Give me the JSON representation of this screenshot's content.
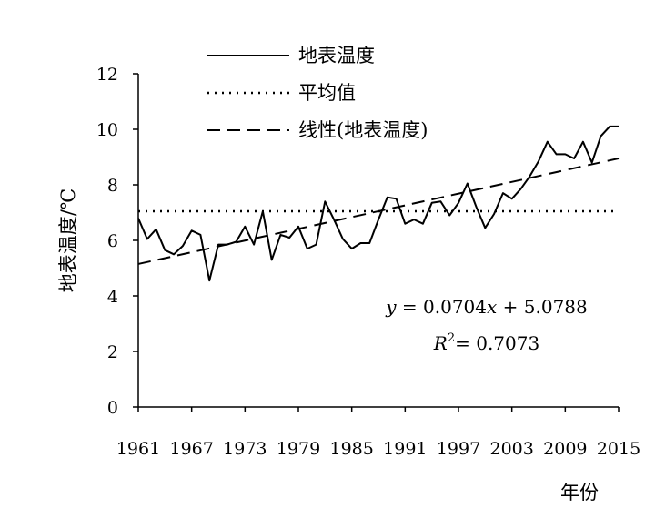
{
  "chart_data": {
    "type": "line",
    "ylabel": "地表温度/℃",
    "xlabel": "年份",
    "ylim": [
      0,
      12
    ],
    "xlim": [
      1961,
      2015
    ],
    "yticks": [
      "0",
      "2",
      "4",
      "6",
      "8",
      "10",
      "12"
    ],
    "xticks": [
      "1961",
      "1967",
      "1973",
      "1979",
      "1985",
      "1991",
      "1997",
      "2003",
      "2009",
      "2015"
    ],
    "grid": false,
    "legend_position": "top",
    "legend": [
      "地表温度",
      "平均值",
      "线性(地表温度)"
    ],
    "series": [
      {
        "name": "地表温度",
        "style": "solid",
        "x": [
          1961,
          1962,
          1963,
          1964,
          1965,
          1966,
          1967,
          1968,
          1969,
          1970,
          1971,
          1972,
          1973,
          1974,
          1975,
          1976,
          1977,
          1978,
          1979,
          1980,
          1981,
          1982,
          1983,
          1984,
          1985,
          1986,
          1987,
          1988,
          1989,
          1990,
          1991,
          1992,
          1993,
          1994,
          1995,
          1996,
          1997,
          1998,
          1999,
          2000,
          2001,
          2002,
          2003,
          2004,
          2005,
          2006,
          2007,
          2008,
          2009,
          2010,
          2011,
          2012,
          2013,
          2014,
          2015
        ],
        "values": [
          6.8,
          6.05,
          6.4,
          5.65,
          5.5,
          5.8,
          6.35,
          6.2,
          4.55,
          5.85,
          5.85,
          5.95,
          6.5,
          5.85,
          7.05,
          5.3,
          6.2,
          6.1,
          6.5,
          5.7,
          5.85,
          7.4,
          6.75,
          6.05,
          5.7,
          5.9,
          5.9,
          6.75,
          7.55,
          7.5,
          6.6,
          6.75,
          6.6,
          7.35,
          7.4,
          6.9,
          7.35,
          8.05,
          7.2,
          6.45,
          6.95,
          7.7,
          7.5,
          7.85,
          8.3,
          8.85,
          9.55,
          9.1,
          9.1,
          8.95,
          9.55,
          8.8,
          9.75,
          10.1,
          10.1
        ]
      },
      {
        "name": "平均值",
        "style": "dotted",
        "value": 7.05
      },
      {
        "name": "线性(地表温度)",
        "style": "dashed",
        "slope": 0.0704,
        "intercept": 5.0788
      }
    ],
    "annotations": {
      "equation_y": "y",
      "equation_eq": "= 0.0704",
      "equation_x": "x",
      "equation_rest": "+ 5.0788",
      "r2_R": "R",
      "r2_exp": "2",
      "r2_rest": "= 0.7073"
    }
  }
}
